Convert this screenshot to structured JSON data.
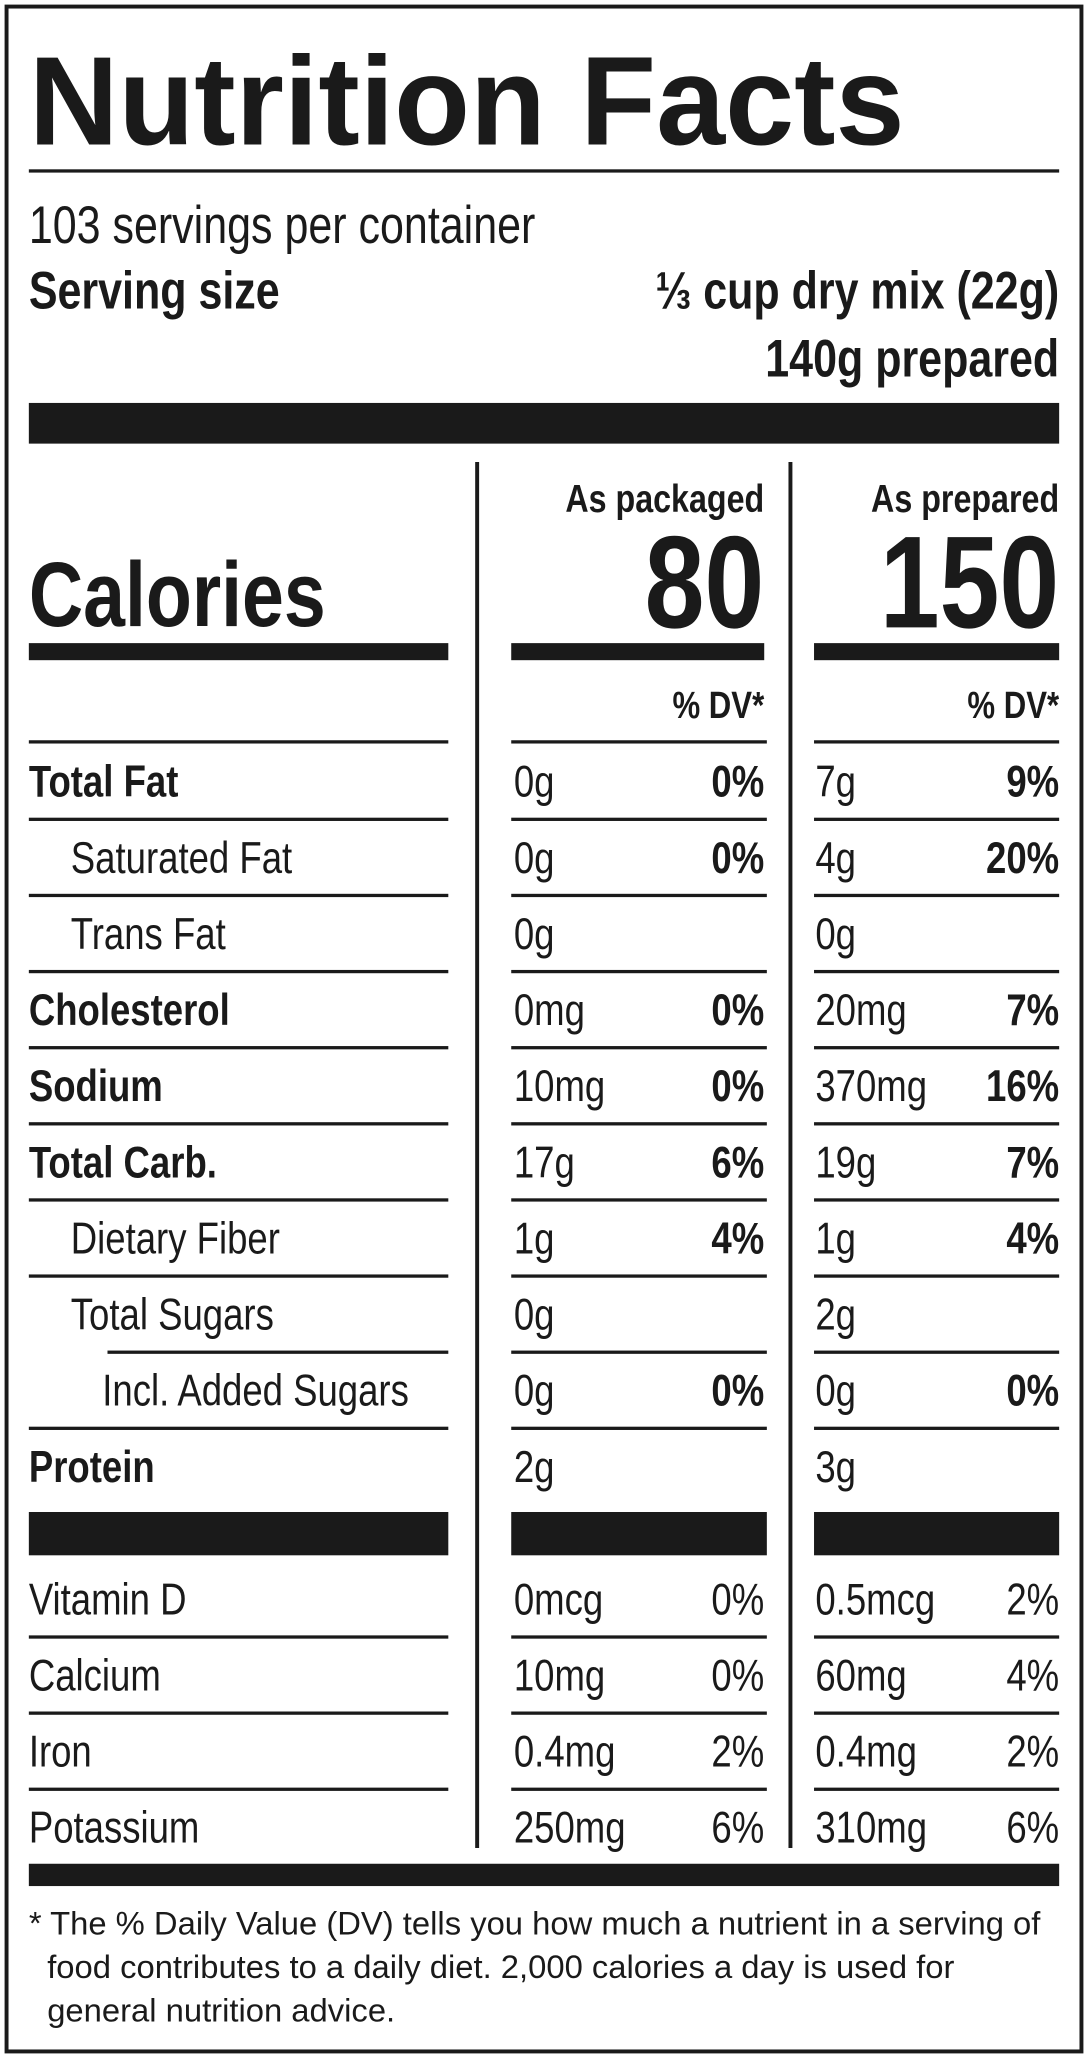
{
  "title": "Nutrition Facts",
  "servings": "103 servings per container",
  "serving_size": {
    "label": "Serving size",
    "value": "⅓ cup dry mix (22g)",
    "prepared": "140g prepared"
  },
  "columns": [
    "As packaged",
    "As prepared"
  ],
  "calories": {
    "label": "Calories",
    "values": [
      80,
      150
    ]
  },
  "dv_header": [
    "% DV*",
    "% DV*"
  ],
  "nutrients": [
    {
      "name": "Total Fat",
      "bold": true,
      "packaged": {
        "amount": "0g",
        "dv": "0%"
      },
      "prepared": {
        "amount": "7g",
        "dv": "9%"
      }
    },
    {
      "name": "Saturated Fat",
      "indent": 1,
      "packaged": {
        "amount": "0g",
        "dv": "0%"
      },
      "prepared": {
        "amount": "4g",
        "dv": "20%"
      }
    },
    {
      "name": "Trans Fat",
      "indent": 1,
      "packaged": {
        "amount": "0g"
      },
      "prepared": {
        "amount": "0g"
      }
    },
    {
      "name": "Cholesterol",
      "bold": true,
      "packaged": {
        "amount": "0mg",
        "dv": "0%"
      },
      "prepared": {
        "amount": "20mg",
        "dv": "7%"
      }
    },
    {
      "name": "Sodium",
      "bold": true,
      "packaged": {
        "amount": "10mg",
        "dv": "0%"
      },
      "prepared": {
        "amount": "370mg",
        "dv": "16%"
      }
    },
    {
      "name": "Total Carb.",
      "bold": true,
      "packaged": {
        "amount": "17g",
        "dv": "6%"
      },
      "prepared": {
        "amount": "19g",
        "dv": "7%"
      }
    },
    {
      "name": "Dietary Fiber",
      "indent": 1,
      "packaged": {
        "amount": "1g",
        "dv": "4%"
      },
      "prepared": {
        "amount": "1g",
        "dv": "4%"
      }
    },
    {
      "name": "Total Sugars",
      "indent": 1,
      "packaged": {
        "amount": "0g"
      },
      "prepared": {
        "amount": "2g"
      }
    },
    {
      "name": "Incl. Added Sugars",
      "indent": 2,
      "packaged": {
        "amount": "0g",
        "dv": "0%"
      },
      "prepared": {
        "amount": "0g",
        "dv": "0%"
      }
    },
    {
      "name": "Protein",
      "bold": true,
      "packaged": {
        "amount": "2g"
      },
      "prepared": {
        "amount": "3g"
      }
    }
  ],
  "vitamins": [
    {
      "name": "Vitamin D",
      "packaged": {
        "amount": "0mcg",
        "dv": "0%"
      },
      "prepared": {
        "amount": "0.5mcg",
        "dv": "2%"
      }
    },
    {
      "name": "Calcium",
      "packaged": {
        "amount": "10mg",
        "dv": "0%"
      },
      "prepared": {
        "amount": "60mg",
        "dv": "4%"
      }
    },
    {
      "name": "Iron",
      "packaged": {
        "amount": "0.4mg",
        "dv": "2%"
      },
      "prepared": {
        "amount": "0.4mg",
        "dv": "2%"
      }
    },
    {
      "name": "Potassium",
      "packaged": {
        "amount": "250mg",
        "dv": "6%"
      },
      "prepared": {
        "amount": "310mg",
        "dv": "6%"
      }
    }
  ],
  "footnote": "* The % Daily Value (DV) tells you how much a nutrient in a serving of food contributes to a daily diet. 2,000 calories a day is used for general nutrition advice."
}
